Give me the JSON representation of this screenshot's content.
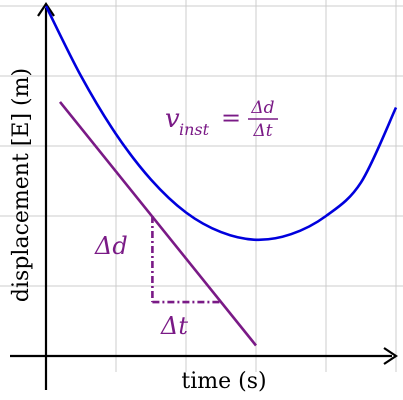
{
  "chart_data": {
    "type": "line",
    "title": "",
    "xlabel": "time (s)",
    "ylabel": "displacement [E] (m)",
    "xlim": [
      0,
      5
    ],
    "ylim": [
      0,
      5
    ],
    "grid": true,
    "colors": {
      "curve": "#0000dd",
      "tangent": "#7a1a86",
      "grid": "#cccccc",
      "axes": "#000000",
      "annotation": "#7a1a86"
    },
    "series": [
      {
        "x": [
          0,
          0.5,
          1.0,
          1.5,
          2.0,
          2.5,
          3.0,
          3.5,
          4.0,
          4.5,
          5.0
        ],
        "y": [
          5.0,
          4.0,
          3.17,
          2.52,
          2.05,
          1.77,
          1.66,
          1.74,
          2.0,
          2.48,
          3.55
        ]
      }
    ],
    "tangent": {
      "x": [
        0.2,
        3.0
      ],
      "y": [
        3.63,
        0.15
      ],
      "touch_point": [
        1.52,
        2.0
      ]
    },
    "triangle": {
      "x": [
        1.52,
        2.52
      ],
      "y": [
        2.0,
        0.77
      ]
    },
    "annotations": {
      "formula_v": "v",
      "formula_sub": "inst",
      "formula_eq": "=",
      "formula_num": "Δd",
      "formula_den": "Δt",
      "delta_d": "Δd",
      "delta_t": "Δt"
    }
  }
}
